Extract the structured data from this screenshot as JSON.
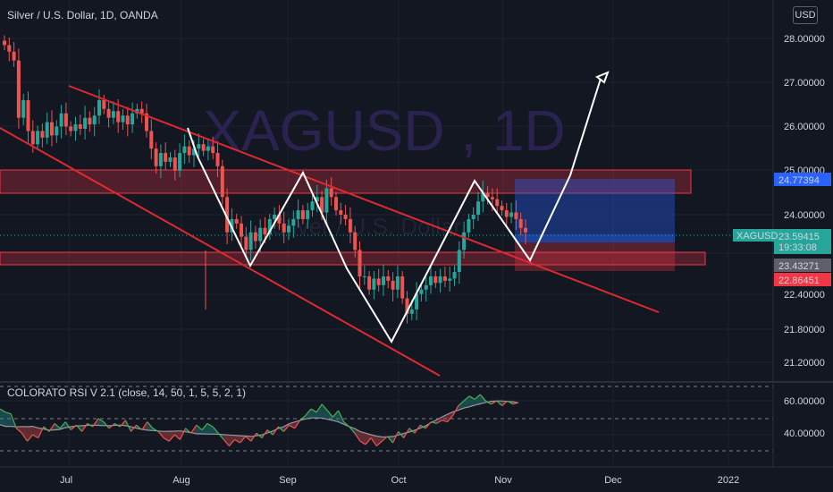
{
  "header": {
    "symbol_title": "Silver / U.S. Dollar, 1D, OANDA",
    "currency_button": "USD"
  },
  "watermark": {
    "big": "XAGUSD , 1D",
    "small": "Silver / U.S. Dollar"
  },
  "colors": {
    "background": "#131722",
    "up": "#26a69a",
    "down": "#ef5350",
    "trendline": "#e0292f",
    "zone": "#f23645",
    "target_box": "#2962ff",
    "pattern": "#ffffff"
  },
  "chart_data": [
    {
      "type": "candlestick",
      "title": "Silver / U.S. Dollar, 1D, OANDA",
      "y_axis": {
        "side": "right",
        "ticks": [
          28.0,
          27.0,
          26.0,
          25.0,
          24.0,
          22.4,
          21.8,
          21.2
        ],
        "tick_labels": [
          "28.00000",
          "27.00000",
          "26.00000",
          "25.00000",
          "24.00000",
          "22.40000",
          "21.80000",
          "21.20000"
        ]
      },
      "x_axis": {
        "tick_labels": [
          "Jul",
          "Aug",
          "Sep",
          "Oct",
          "Nov",
          "Dec",
          "2022"
        ]
      },
      "price_labels": [
        {
          "value": "24.77394",
          "color": "#2962ff"
        },
        {
          "value": "XAGUSD",
          "value2": "23.59415",
          "value3": "19:33:08",
          "color": "#26a69a"
        },
        {
          "value": "23.43271",
          "color": "#5d606b"
        },
        {
          "value": "22.86451",
          "color": "#f23645"
        }
      ],
      "closes": [
        27.85,
        27.7,
        27.5,
        26.2,
        26.6,
        25.9,
        25.6,
        25.9,
        25.75,
        26.1,
        25.8,
        26.0,
        26.3,
        26.0,
        25.9,
        26.05,
        25.95,
        26.2,
        26.05,
        26.25,
        26.6,
        26.4,
        26.2,
        26.35,
        26.1,
        26.25,
        26.05,
        26.3,
        26.4,
        26.3,
        25.9,
        25.5,
        25.1,
        25.4,
        25.2,
        25.3,
        25.0,
        25.4,
        25.55,
        25.35,
        25.5,
        25.6,
        25.45,
        25.55,
        25.4,
        25.1,
        24.4,
        23.6,
        23.9,
        23.8,
        23.5,
        23.2,
        23.6,
        23.4,
        23.7,
        23.55,
        23.9,
        24.0,
        23.8,
        23.6,
        23.75,
        23.9,
        24.1,
        23.9,
        24.1,
        24.3,
        24.4,
        24.05,
        24.6,
        24.4,
        24.1,
        24.0,
        23.9,
        23.6,
        23.2,
        22.6,
        22.6,
        22.3,
        22.55,
        22.4,
        22.6,
        22.5,
        22.3,
        22.6,
        22.1,
        21.75,
        21.85,
        22.2,
        22.3,
        22.4,
        22.6,
        22.45,
        22.6,
        22.5,
        22.55,
        22.7,
        23.2,
        23.6,
        23.9,
        24.0,
        24.3,
        24.5,
        24.4,
        24.35,
        24.2,
        24.1,
        23.95,
        24.05,
        23.9,
        23.7,
        23.6
      ],
      "rsi": {
        "title": "COLORATO RSI V 2.1",
        "params": "(close, 14, 50, 1, 5, 5, 2, 1)",
        "tick_labels": [
          "60.00000",
          "40.00000"
        ],
        "upper": 70,
        "mid": 50,
        "lower": 30
      },
      "annotations": [
        {
          "kind": "zone",
          "label": "resistance zone",
          "from": 24.52,
          "to": 25.0
        },
        {
          "kind": "zone",
          "label": "support zone",
          "from": 22.98,
          "to": 23.25
        },
        {
          "kind": "trendline",
          "label": "upper channel"
        },
        {
          "kind": "trendline",
          "label": "lower channel"
        },
        {
          "kind": "zigzag",
          "label": "double bottom pattern"
        },
        {
          "kind": "arrow",
          "label": "projection to 27.1"
        },
        {
          "kind": "box",
          "label": "target box",
          "from": 23.43,
          "to": 24.77
        }
      ]
    }
  ]
}
